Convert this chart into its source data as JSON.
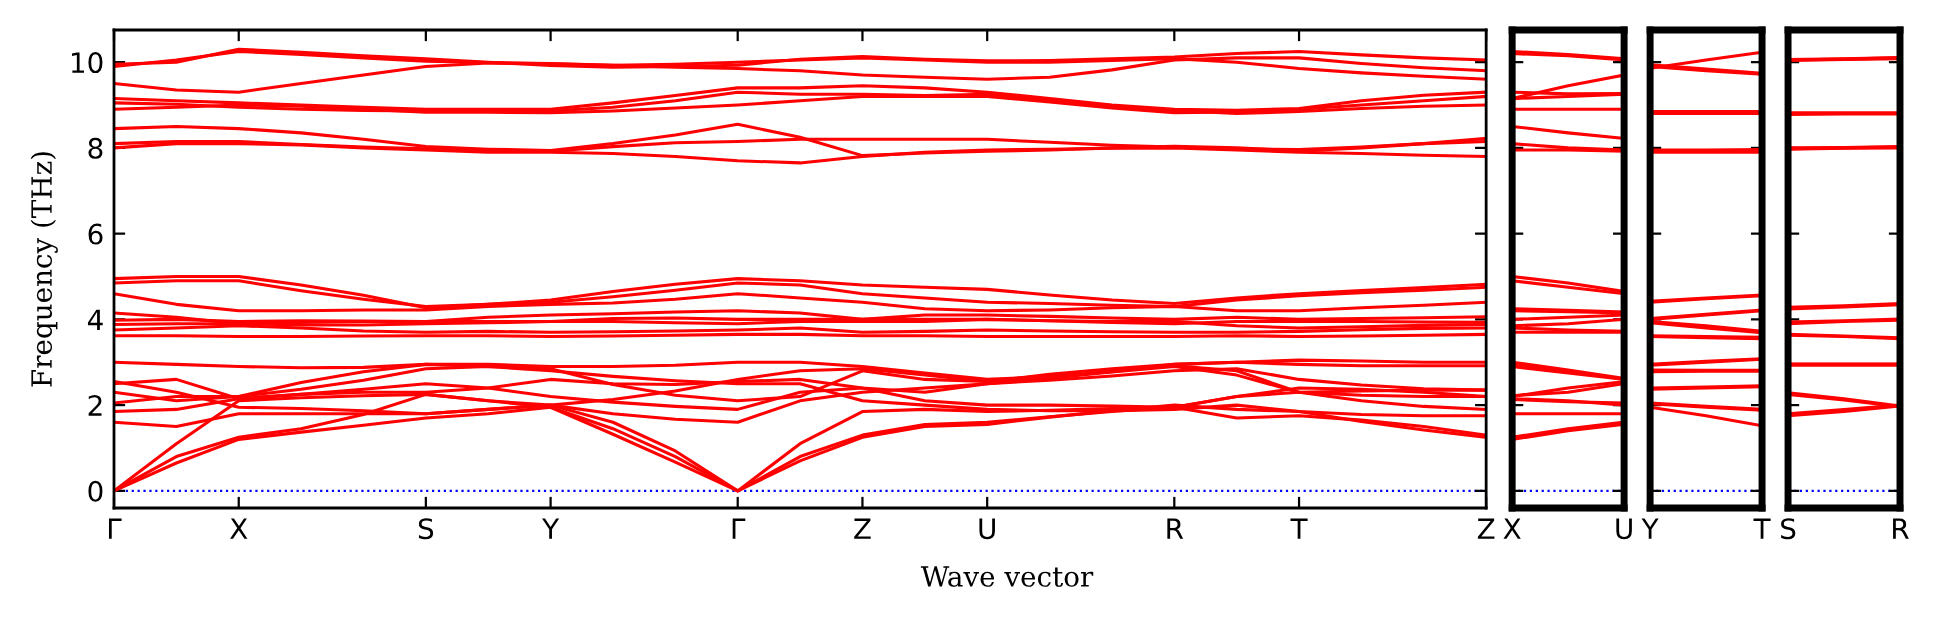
{
  "chart_data": [
    {
      "type": "line",
      "xlabel": "Wave vector",
      "ylabel": "Frequency (THz)",
      "categories": [
        "Γ",
        null,
        "X",
        null,
        null,
        "S",
        null,
        "Y",
        null,
        null,
        "Γ",
        null,
        "Z",
        null,
        "U",
        null,
        null,
        "R",
        null,
        "T",
        null,
        null,
        "Z"
      ],
      "ylim": [
        -0.4,
        10.75
      ],
      "yticks": [
        0,
        2,
        4,
        6,
        8,
        10
      ],
      "ref_lines": [
        {
          "axis": "y",
          "value": 0,
          "color": "#0000ff",
          "line_style": "dotted"
        }
      ],
      "series": [
        {
          "color": "#ff0000",
          "values": [
            0,
            0.65,
            1.2,
            1.37,
            1.53,
            1.7,
            1.8,
            1.95,
            1.32,
            0.67,
            0,
            0.7,
            1.25,
            1.5,
            1.55,
            1.72,
            1.87,
            2.0,
            1.9,
            1.85,
            1.62,
            1.42,
            1.25
          ]
        },
        {
          "color": "#ff0000",
          "values": [
            0,
            0.8,
            1.25,
            1.45,
            1.78,
            2.25,
            2.1,
            1.95,
            1.45,
            0.8,
            0,
            0.8,
            1.3,
            1.55,
            1.6,
            1.73,
            1.85,
            1.95,
            2.2,
            2.3,
            2.33,
            2.35,
            2.35
          ]
        },
        {
          "color": "#ff0000",
          "values": [
            0,
            1.1,
            2.1,
            2.17,
            2.22,
            2.25,
            2.1,
            2.0,
            1.6,
            0.93,
            0,
            1.1,
            1.85,
            1.9,
            1.85,
            1.88,
            1.92,
            1.95,
            1.7,
            1.75,
            1.65,
            1.5,
            1.3
          ]
        },
        {
          "color": "#ff0000",
          "values": [
            1.6,
            1.5,
            1.8,
            1.8,
            1.8,
            1.8,
            1.9,
            2.0,
            1.8,
            1.67,
            1.6,
            2.1,
            2.3,
            2.4,
            2.5,
            2.63,
            2.77,
            2.9,
            2.7,
            2.3,
            2.1,
            1.97,
            1.9
          ]
        },
        {
          "color": "#ff0000",
          "values": [
            1.85,
            1.9,
            2.15,
            2.25,
            2.37,
            2.5,
            2.4,
            2.2,
            2.07,
            1.97,
            1.9,
            2.3,
            2.4,
            2.1,
            2.0,
            2.0,
            1.98,
            1.95,
            2.2,
            2.4,
            2.37,
            2.3,
            2.2
          ]
        },
        {
          "color": "#ff0000",
          "values": [
            2.05,
            2.2,
            2.2,
            2.37,
            2.58,
            2.85,
            2.9,
            2.85,
            2.48,
            2.23,
            2.1,
            2.2,
            2.8,
            2.6,
            2.55,
            2.72,
            2.85,
            2.95,
            3.0,
            3.05,
            3.03,
            3.0,
            3.0
          ]
        },
        {
          "color": "#ff0000",
          "values": [
            2.3,
            2.1,
            2.2,
            2.53,
            2.78,
            2.95,
            2.9,
            2.8,
            2.67,
            2.57,
            2.5,
            2.5,
            2.1,
            2.0,
            1.9,
            1.87,
            1.87,
            1.9,
            2.0,
            1.85,
            1.78,
            1.75,
            1.75
          ]
        },
        {
          "color": "#ff0000",
          "values": [
            2.5,
            2.6,
            2.15,
            2.25,
            2.3,
            2.3,
            2.4,
            2.6,
            2.5,
            2.48,
            2.55,
            2.6,
            2.4,
            2.3,
            2.5,
            2.58,
            2.68,
            2.8,
            2.85,
            2.6,
            2.47,
            2.38,
            2.35
          ]
        },
        {
          "color": "#ff0000",
          "values": [
            2.55,
            2.3,
            1.95,
            1.92,
            1.87,
            1.8,
            1.9,
            2.0,
            2.13,
            2.33,
            2.6,
            2.8,
            2.85,
            2.7,
            2.55,
            2.62,
            2.8,
            2.92,
            2.8,
            2.3,
            2.23,
            2.2,
            2.2
          ]
        },
        {
          "color": "#ff0000",
          "values": [
            3.0,
            2.95,
            2.9,
            2.87,
            2.88,
            2.95,
            2.95,
            2.9,
            2.9,
            2.93,
            3.0,
            3.0,
            2.9,
            2.75,
            2.6,
            2.67,
            2.78,
            2.95,
            3.0,
            2.95,
            2.92,
            2.92,
            2.92
          ]
        },
        {
          "color": "#ff0000",
          "values": [
            3.62,
            3.62,
            3.6,
            3.6,
            3.61,
            3.62,
            3.62,
            3.6,
            3.61,
            3.63,
            3.65,
            3.65,
            3.62,
            3.62,
            3.6,
            3.6,
            3.6,
            3.6,
            3.62,
            3.6,
            3.61,
            3.63,
            3.65
          ]
        },
        {
          "color": "#ff0000",
          "values": [
            3.75,
            3.8,
            3.85,
            3.8,
            3.73,
            3.7,
            3.72,
            3.7,
            3.71,
            3.73,
            3.75,
            3.8,
            3.7,
            3.72,
            3.75,
            3.73,
            3.71,
            3.7,
            3.7,
            3.72,
            3.76,
            3.79,
            3.8
          ]
        },
        {
          "color": "#ff0000",
          "values": [
            3.88,
            3.9,
            3.9,
            3.87,
            3.87,
            3.9,
            3.92,
            3.95,
            3.95,
            3.92,
            3.9,
            3.95,
            3.95,
            3.95,
            4.0,
            3.97,
            3.93,
            3.9,
            3.95,
            3.95,
            3.95,
            3.94,
            3.93
          ]
        },
        {
          "color": "#ff0000",
          "values": [
            3.98,
            4.0,
            3.95,
            3.97,
            3.96,
            3.95,
            3.95,
            3.95,
            4.02,
            4.03,
            4.0,
            4.0,
            4.0,
            4.1,
            4.1,
            4.07,
            4.03,
            4.0,
            4.05,
            4.0,
            4.02,
            4.04,
            4.06
          ]
        },
        {
          "color": "#ff0000",
          "values": [
            4.15,
            4.05,
            3.9,
            3.93,
            3.95,
            3.95,
            4.05,
            4.1,
            4.13,
            4.17,
            4.2,
            4.15,
            4.0,
            4.0,
            4.0,
            3.97,
            3.95,
            3.95,
            3.85,
            3.8,
            3.83,
            3.86,
            3.88
          ]
        },
        {
          "color": "#ff0000",
          "values": [
            4.6,
            4.35,
            4.2,
            4.2,
            4.22,
            4.22,
            4.3,
            4.35,
            4.38,
            4.47,
            4.6,
            4.5,
            4.4,
            4.25,
            4.2,
            4.22,
            4.27,
            4.3,
            4.2,
            4.2,
            4.27,
            4.33,
            4.4
          ]
        },
        {
          "color": "#ff0000",
          "values": [
            4.85,
            4.9,
            4.9,
            4.67,
            4.47,
            4.3,
            4.35,
            4.4,
            4.53,
            4.68,
            4.85,
            4.8,
            4.6,
            4.5,
            4.4,
            4.37,
            4.33,
            4.3,
            4.45,
            4.55,
            4.62,
            4.68,
            4.75
          ]
        },
        {
          "color": "#ff0000",
          "values": [
            4.95,
            5.0,
            5.0,
            4.8,
            4.56,
            4.27,
            4.35,
            4.45,
            4.65,
            4.82,
            4.95,
            4.9,
            4.8,
            4.75,
            4.7,
            4.57,
            4.45,
            4.37,
            4.5,
            4.6,
            4.67,
            4.74,
            4.82
          ]
        },
        {
          "color": "#ff0000",
          "values": [
            8.0,
            8.1,
            8.1,
            8.07,
            8.0,
            7.95,
            7.9,
            7.9,
            7.87,
            7.8,
            7.7,
            7.65,
            7.8,
            7.9,
            7.95,
            7.97,
            7.99,
            8.0,
            7.95,
            7.9,
            7.87,
            7.83,
            7.8
          ]
        },
        {
          "color": "#ff0000",
          "values": [
            8.1,
            8.15,
            8.15,
            8.08,
            8.02,
            7.98,
            7.95,
            7.92,
            8.03,
            8.12,
            8.15,
            8.2,
            8.2,
            8.2,
            8.2,
            8.13,
            8.06,
            8.02,
            7.98,
            7.96,
            8.02,
            8.1,
            8.15
          ]
        },
        {
          "color": "#ff0000",
          "values": [
            8.45,
            8.5,
            8.45,
            8.35,
            8.2,
            8.03,
            7.97,
            7.94,
            8.1,
            8.3,
            8.55,
            8.25,
            7.82,
            7.88,
            7.92,
            7.95,
            8.0,
            8.04,
            8.0,
            7.93,
            8.0,
            8.1,
            8.22
          ]
        },
        {
          "color": "#ff0000",
          "values": [
            8.9,
            8.95,
            9.0,
            8.97,
            8.9,
            8.83,
            8.83,
            8.82,
            8.86,
            8.93,
            9.0,
            9.1,
            9.2,
            9.2,
            9.2,
            9.07,
            8.93,
            8.82,
            8.84,
            8.9,
            9.0,
            9.1,
            9.2
          ]
        },
        {
          "color": "#ff0000",
          "values": [
            9.05,
            9.02,
            8.95,
            8.9,
            8.87,
            8.86,
            8.86,
            8.86,
            8.95,
            9.1,
            9.3,
            9.25,
            9.25,
            9.22,
            9.25,
            9.12,
            8.98,
            8.87,
            8.8,
            8.85,
            8.92,
            8.97,
            9.0
          ]
        },
        {
          "color": "#ff0000",
          "values": [
            9.15,
            9.1,
            9.05,
            9.0,
            8.95,
            8.9,
            8.9,
            8.9,
            9.05,
            9.22,
            9.4,
            9.4,
            9.45,
            9.4,
            9.3,
            9.15,
            9.0,
            8.9,
            8.88,
            8.92,
            9.1,
            9.23,
            9.3
          ]
        },
        {
          "color": "#ff0000",
          "values": [
            9.5,
            9.35,
            9.3,
            9.5,
            9.7,
            9.9,
            9.98,
            9.97,
            9.93,
            9.88,
            9.85,
            9.8,
            9.7,
            9.65,
            9.6,
            9.65,
            9.82,
            10.05,
            10.1,
            10.1,
            9.97,
            9.87,
            9.8
          ]
        },
        {
          "color": "#ff0000",
          "values": [
            9.9,
            10.05,
            10.25,
            10.18,
            10.1,
            10.02,
            9.99,
            9.96,
            9.93,
            9.95,
            10.0,
            10.05,
            10.1,
            10.05,
            10.0,
            10.0,
            10.04,
            10.08,
            10.0,
            9.85,
            9.75,
            9.67,
            9.6
          ]
        },
        {
          "color": "#ff0000",
          "values": [
            9.95,
            10.0,
            10.3,
            10.23,
            10.15,
            10.08,
            10.0,
            9.92,
            9.88,
            9.9,
            9.93,
            10.07,
            10.13,
            10.07,
            10.03,
            10.04,
            10.08,
            10.12,
            10.2,
            10.25,
            10.17,
            10.1,
            10.05
          ]
        }
      ]
    },
    {
      "type": "line",
      "categories": [
        "X",
        null,
        "U"
      ],
      "ylim": [
        -0.4,
        10.75
      ],
      "tick_labels": "x",
      "yticks": [
        0,
        2,
        4,
        6,
        8,
        10
      ],
      "ref_lines": [
        {
          "axis": "y",
          "value": 0,
          "color": "#0000ff",
          "line_style": "dotted"
        }
      ],
      "series": [
        {
          "color": "#ff0000",
          "values": [
            1.2,
            1.4,
            1.55
          ]
        },
        {
          "color": "#ff0000",
          "values": [
            1.25,
            1.45,
            1.6
          ]
        },
        {
          "color": "#ff0000",
          "values": [
            1.8,
            1.8,
            1.8
          ]
        },
        {
          "color": "#ff0000",
          "values": [
            2.15,
            2.1,
            2.0
          ]
        },
        {
          "color": "#ff0000",
          "values": [
            2.2,
            2.4,
            2.55
          ]
        },
        {
          "color": "#ff0000",
          "values": [
            2.22,
            2.3,
            2.5
          ]
        },
        {
          "color": "#ff0000",
          "values": [
            2.95,
            2.8,
            2.6
          ]
        },
        {
          "color": "#ff0000",
          "values": [
            2.9,
            2.75,
            2.6
          ]
        },
        {
          "color": "#ff0000",
          "values": [
            2.13,
            2.08,
            2.05
          ]
        },
        {
          "color": "#ff0000",
          "values": [
            3.0,
            2.82,
            2.62
          ]
        },
        {
          "color": "#ff0000",
          "values": [
            3.7,
            3.7,
            3.7
          ]
        },
        {
          "color": "#ff0000",
          "values": [
            3.8,
            3.75,
            3.72
          ]
        },
        {
          "color": "#ff0000",
          "values": [
            3.85,
            3.9,
            4.0
          ]
        },
        {
          "color": "#ff0000",
          "values": [
            4.0,
            4.05,
            4.1
          ]
        },
        {
          "color": "#ff0000",
          "values": [
            4.2,
            4.18,
            4.15
          ]
        },
        {
          "color": "#ff0000",
          "values": [
            4.25,
            4.21,
            4.17
          ]
        },
        {
          "color": "#ff0000",
          "values": [
            4.9,
            4.75,
            4.6
          ]
        },
        {
          "color": "#ff0000",
          "values": [
            5.0,
            4.85,
            4.65
          ]
        },
        {
          "color": "#ff0000",
          "values": [
            7.95,
            7.95,
            7.92
          ]
        },
        {
          "color": "#ff0000",
          "values": [
            8.1,
            8.0,
            7.95
          ]
        },
        {
          "color": "#ff0000",
          "values": [
            8.5,
            8.35,
            8.22
          ]
        },
        {
          "color": "#ff0000",
          "values": [
            8.9,
            8.9,
            8.9
          ]
        },
        {
          "color": "#ff0000",
          "values": [
            9.15,
            9.2,
            9.25
          ]
        },
        {
          "color": "#ff0000",
          "values": [
            9.3,
            9.26,
            9.27
          ]
        },
        {
          "color": "#ff0000",
          "values": [
            9.15,
            9.45,
            9.7
          ]
        },
        {
          "color": "#ff0000",
          "values": [
            10.2,
            10.15,
            10.05
          ]
        },
        {
          "color": "#ff0000",
          "values": [
            10.25,
            10.18,
            10.08
          ]
        }
      ]
    },
    {
      "type": "line",
      "categories": [
        "Y",
        null,
        "T"
      ],
      "ylim": [
        -0.4,
        10.75
      ],
      "tick_labels": "x",
      "yticks": [
        0,
        2,
        4,
        6,
        8,
        10
      ],
      "ref_lines": [
        {
          "axis": "y",
          "value": 0,
          "color": "#0000ff",
          "line_style": "dotted"
        }
      ],
      "series": [
        {
          "color": "#ff0000",
          "values": [
            1.95,
            1.75,
            1.52
          ]
        },
        {
          "color": "#ff0000",
          "values": [
            2.03,
            1.95,
            1.88
          ]
        },
        {
          "color": "#ff0000",
          "values": [
            2.05,
            1.97,
            1.9
          ]
        },
        {
          "color": "#ff0000",
          "values": [
            2.37,
            2.4,
            2.43
          ]
        },
        {
          "color": "#ff0000",
          "values": [
            2.4,
            2.42,
            2.45
          ]
        },
        {
          "color": "#ff0000",
          "values": [
            2.82,
            2.81,
            2.81
          ]
        },
        {
          "color": "#ff0000",
          "values": [
            2.93,
            3.0,
            3.07
          ]
        },
        {
          "color": "#ff0000",
          "values": [
            2.95,
            3.02,
            3.08
          ]
        },
        {
          "color": "#ff0000",
          "values": [
            2.78,
            2.79,
            2.79
          ]
        },
        {
          "color": "#ff0000",
          "values": [
            3.6,
            3.57,
            3.55
          ]
        },
        {
          "color": "#ff0000",
          "values": [
            3.62,
            3.6,
            3.58
          ]
        },
        {
          "color": "#ff0000",
          "values": [
            3.92,
            3.8,
            3.69
          ]
        },
        {
          "color": "#ff0000",
          "values": [
            3.95,
            3.85,
            3.72
          ]
        },
        {
          "color": "#ff0000",
          "values": [
            4.0,
            4.1,
            4.2
          ]
        },
        {
          "color": "#ff0000",
          "values": [
            4.02,
            4.12,
            4.22
          ]
        },
        {
          "color": "#ff0000",
          "values": [
            4.42,
            4.5,
            4.57
          ]
        },
        {
          "color": "#ff0000",
          "values": [
            4.4,
            4.48,
            4.55
          ]
        },
        {
          "color": "#ff0000",
          "values": [
            7.9,
            7.9,
            7.9
          ]
        },
        {
          "color": "#ff0000",
          "values": [
            7.95,
            7.95,
            7.96
          ]
        },
        {
          "color": "#ff0000",
          "values": [
            8.8,
            8.8,
            8.8
          ]
        },
        {
          "color": "#ff0000",
          "values": [
            8.85,
            8.85,
            8.85
          ]
        },
        {
          "color": "#ff0000",
          "values": [
            9.86,
            10.05,
            10.23
          ]
        },
        {
          "color": "#ff0000",
          "values": [
            9.94,
            9.84,
            9.74
          ]
        },
        {
          "color": "#ff0000",
          "values": [
            9.9,
            9.8,
            9.72
          ]
        }
      ]
    },
    {
      "type": "line",
      "categories": [
        "S",
        null,
        "R"
      ],
      "ylim": [
        -0.4,
        10.75
      ],
      "tick_labels": "x",
      "yticks": [
        0,
        2,
        4,
        6,
        8,
        10
      ],
      "ref_lines": [
        {
          "axis": "y",
          "value": 0,
          "color": "#0000ff",
          "line_style": "dotted"
        }
      ],
      "series": [
        {
          "color": "#ff0000",
          "values": [
            1.75,
            1.85,
            1.98
          ]
        },
        {
          "color": "#ff0000",
          "values": [
            1.8,
            1.9,
            2.0
          ]
        },
        {
          "color": "#ff0000",
          "values": [
            2.29,
            2.15,
            1.98
          ]
        },
        {
          "color": "#ff0000",
          "values": [
            2.25,
            2.12,
            1.96
          ]
        },
        {
          "color": "#ff0000",
          "values": [
            2.95,
            2.95,
            2.95
          ]
        },
        {
          "color": "#ff0000",
          "values": [
            2.93,
            2.93,
            2.93
          ]
        },
        {
          "color": "#ff0000",
          "values": [
            2.96,
            2.96,
            2.96
          ]
        },
        {
          "color": "#ff0000",
          "values": [
            3.63,
            3.6,
            3.55
          ]
        },
        {
          "color": "#ff0000",
          "values": [
            3.65,
            3.61,
            3.57
          ]
        },
        {
          "color": "#ff0000",
          "values": [
            3.94,
            3.97,
            4.01
          ]
        },
        {
          "color": "#ff0000",
          "values": [
            3.9,
            3.95,
            3.98
          ]
        },
        {
          "color": "#ff0000",
          "values": [
            4.28,
            4.32,
            4.37
          ]
        },
        {
          "color": "#ff0000",
          "values": [
            4.24,
            4.29,
            4.34
          ]
        },
        {
          "color": "#ff0000",
          "values": [
            7.98,
            8.0,
            8.02
          ]
        },
        {
          "color": "#ff0000",
          "values": [
            8.0,
            8.01,
            8.03
          ]
        },
        {
          "color": "#ff0000",
          "values": [
            7.97,
            7.99,
            8.0
          ]
        },
        {
          "color": "#ff0000",
          "values": [
            8.82,
            8.82,
            8.82
          ]
        },
        {
          "color": "#ff0000",
          "values": [
            8.78,
            8.79,
            8.79
          ]
        },
        {
          "color": "#ff0000",
          "values": [
            10.05,
            10.07,
            10.1
          ]
        },
        {
          "color": "#ff0000",
          "values": [
            10.06,
            10.08,
            10.11
          ]
        },
        {
          "color": "#ff0000",
          "values": [
            10.04,
            10.06,
            10.08
          ]
        }
      ]
    }
  ]
}
